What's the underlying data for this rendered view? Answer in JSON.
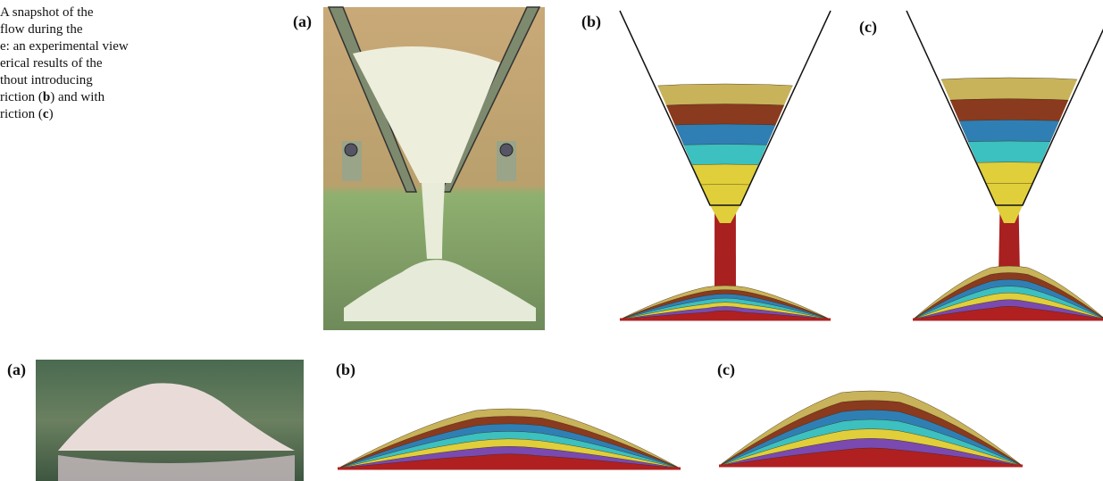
{
  "caption": {
    "lines": [
      [
        "A snapshot of the"
      ],
      [
        "flow during the"
      ],
      [
        "e: an experimental view"
      ],
      [
        "erical results of the"
      ],
      [
        "thout introducing"
      ],
      [
        "riction (",
        "b",
        ") and with"
      ],
      [
        "riction (",
        "c",
        ")"
      ]
    ]
  },
  "top_panels": {
    "labels": [
      "(a)",
      "(b)",
      "(c)"
    ]
  },
  "bottom_panels": {
    "labels": [
      "(a)",
      "(b)",
      "(c)"
    ]
  }
}
